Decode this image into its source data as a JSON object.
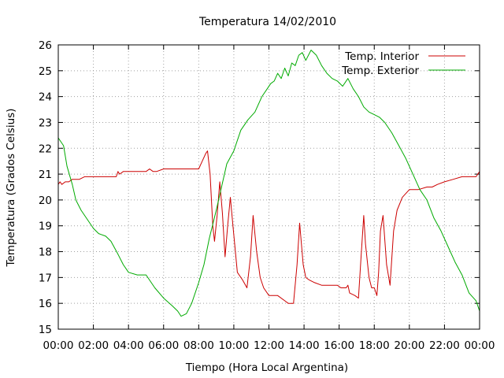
{
  "chart_data": {
    "type": "line",
    "title": "Temperatura 14/02/2010",
    "xlabel": "Tiempo (Hora Local Argentina)",
    "ylabel": "Temperatura (Grados Celsius)",
    "xlim": [
      0,
      24
    ],
    "ylim": [
      15,
      26
    ],
    "grid": true,
    "legend_position": "top-right",
    "x_ticks": [
      {
        "value": 0,
        "label": "00:00"
      },
      {
        "value": 2,
        "label": "02:00"
      },
      {
        "value": 4,
        "label": "04:00"
      },
      {
        "value": 6,
        "label": "06:00"
      },
      {
        "value": 8,
        "label": "08:00"
      },
      {
        "value": 10,
        "label": "10:00"
      },
      {
        "value": 12,
        "label": "12:00"
      },
      {
        "value": 14,
        "label": "14:00"
      },
      {
        "value": 16,
        "label": "16:00"
      },
      {
        "value": 18,
        "label": "18:00"
      },
      {
        "value": 20,
        "label": "20:00"
      },
      {
        "value": 22,
        "label": "22:00"
      },
      {
        "value": 24,
        "label": "00:00"
      }
    ],
    "y_ticks": [
      {
        "value": 15,
        "label": "15"
      },
      {
        "value": 16,
        "label": "16"
      },
      {
        "value": 17,
        "label": "17"
      },
      {
        "value": 18,
        "label": "18"
      },
      {
        "value": 19,
        "label": "19"
      },
      {
        "value": 20,
        "label": "20"
      },
      {
        "value": 21,
        "label": "21"
      },
      {
        "value": 22,
        "label": "22"
      },
      {
        "value": 23,
        "label": "23"
      },
      {
        "value": 24,
        "label": "24"
      },
      {
        "value": 25,
        "label": "25"
      },
      {
        "value": 26,
        "label": "26"
      }
    ],
    "series": [
      {
        "name": "Temp. Interior",
        "color": "#cc0000",
        "x": [
          0,
          0.1,
          0.2,
          0.4,
          0.6,
          0.8,
          1.0,
          1.2,
          1.5,
          2.0,
          2.5,
          3.0,
          3.3,
          3.4,
          3.5,
          3.7,
          4.0,
          4.5,
          5.0,
          5.2,
          5.4,
          5.6,
          6.0,
          6.5,
          7.0,
          7.5,
          8.0,
          8.2,
          8.4,
          8.5,
          8.65,
          8.8,
          8.9,
          9.05,
          9.2,
          9.35,
          9.5,
          9.65,
          9.8,
          9.95,
          10.2,
          10.5,
          10.75,
          10.95,
          11.1,
          11.3,
          11.5,
          11.7,
          12.0,
          12.5,
          12.9,
          13.1,
          13.4,
          13.6,
          13.75,
          13.95,
          14.1,
          14.3,
          14.6,
          15.0,
          15.5,
          15.9,
          16.1,
          16.4,
          16.5,
          16.6,
          16.9,
          17.1,
          17.25,
          17.4,
          17.5,
          17.7,
          17.85,
          18.0,
          18.15,
          18.25,
          18.35,
          18.5,
          18.7,
          18.9,
          19.1,
          19.3,
          19.6,
          20.0,
          20.5,
          21.0,
          21.3,
          21.6,
          22.0,
          22.5,
          23.0,
          23.5,
          23.8,
          24.0
        ],
        "y": [
          20.6,
          20.7,
          20.6,
          20.7,
          20.7,
          20.8,
          20.8,
          20.8,
          20.9,
          20.9,
          20.9,
          20.9,
          20.9,
          21.1,
          21.0,
          21.1,
          21.1,
          21.1,
          21.1,
          21.2,
          21.1,
          21.1,
          21.2,
          21.2,
          21.2,
          21.2,
          21.2,
          21.5,
          21.8,
          21.9,
          21.0,
          19.0,
          18.4,
          19.4,
          20.7,
          19.5,
          17.8,
          19.0,
          20.1,
          19.0,
          17.2,
          16.9,
          16.6,
          17.8,
          19.4,
          18.0,
          17.0,
          16.6,
          16.3,
          16.3,
          16.1,
          16.0,
          16.0,
          17.5,
          19.1,
          17.5,
          17.0,
          16.9,
          16.8,
          16.7,
          16.7,
          16.7,
          16.6,
          16.6,
          16.7,
          16.4,
          16.3,
          16.2,
          17.8,
          19.4,
          18.3,
          17.0,
          16.6,
          16.6,
          16.3,
          17.2,
          18.8,
          19.4,
          17.5,
          16.7,
          18.8,
          19.6,
          20.1,
          20.4,
          20.4,
          20.5,
          20.5,
          20.6,
          20.7,
          20.8,
          20.9,
          20.9,
          20.9,
          21.1
        ]
      },
      {
        "name": "Temp. Exterior",
        "color": "#00aa00",
        "x": [
          0,
          0.3,
          0.5,
          0.8,
          1.0,
          1.3,
          1.6,
          2.0,
          2.3,
          2.7,
          3.0,
          3.4,
          3.7,
          4.0,
          4.5,
          5.0,
          5.5,
          6.0,
          6.5,
          6.8,
          7.0,
          7.3,
          7.6,
          8.0,
          8.3,
          8.6,
          9.0,
          9.3,
          9.6,
          10.0,
          10.4,
          10.8,
          11.2,
          11.6,
          11.9,
          12.1,
          12.3,
          12.5,
          12.7,
          12.9,
          13.1,
          13.3,
          13.5,
          13.7,
          13.9,
          14.1,
          14.4,
          14.7,
          15.0,
          15.3,
          15.6,
          15.9,
          16.2,
          16.5,
          16.8,
          17.1,
          17.4,
          17.7,
          18.0,
          18.3,
          18.6,
          19.0,
          19.4,
          19.8,
          20.2,
          20.6,
          21.0,
          21.4,
          21.8,
          22.2,
          22.6,
          23.0,
          23.4,
          23.8,
          24.0
        ],
        "y": [
          22.4,
          22.1,
          21.3,
          20.6,
          20.0,
          19.6,
          19.3,
          18.9,
          18.7,
          18.6,
          18.4,
          17.9,
          17.5,
          17.2,
          17.1,
          17.1,
          16.6,
          16.2,
          15.9,
          15.7,
          15.5,
          15.6,
          16.0,
          16.8,
          17.5,
          18.5,
          19.6,
          20.5,
          21.4,
          21.9,
          22.7,
          23.1,
          23.4,
          24.0,
          24.3,
          24.5,
          24.6,
          24.9,
          24.7,
          25.1,
          24.8,
          25.3,
          25.2,
          25.6,
          25.7,
          25.4,
          25.8,
          25.6,
          25.2,
          24.9,
          24.7,
          24.6,
          24.4,
          24.7,
          24.3,
          24.0,
          23.6,
          23.4,
          23.3,
          23.2,
          23.0,
          22.6,
          22.1,
          21.6,
          21.0,
          20.4,
          20.0,
          19.3,
          18.8,
          18.2,
          17.6,
          17.1,
          16.4,
          16.1,
          15.7
        ]
      }
    ]
  }
}
